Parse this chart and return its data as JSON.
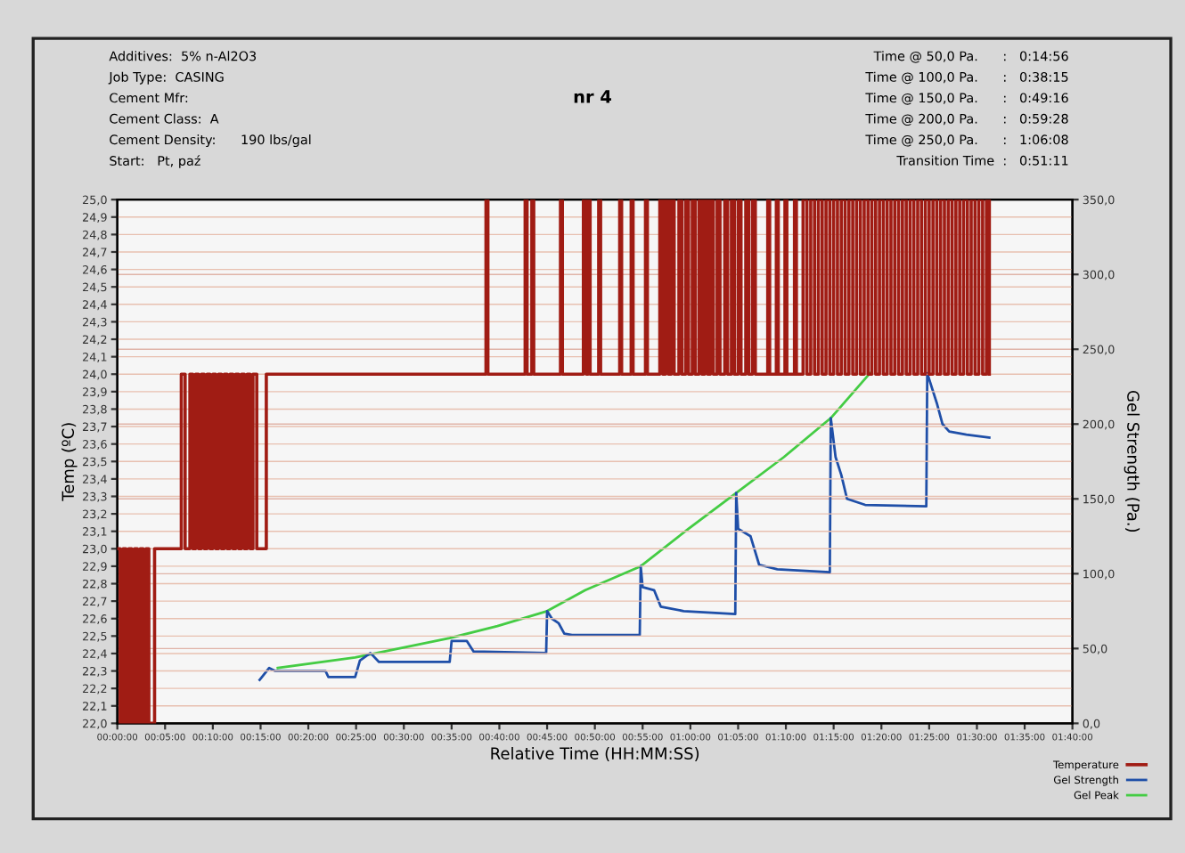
{
  "chart_data": {
    "type": "line",
    "title": "nr 4",
    "annotations": [
      "Additives:  5% n-Al2O3",
      "Job Type:  CASING",
      "Cement Mfr:",
      "Cement Class:  A",
      "Cement Density:      190 lbs/gal",
      "Start:   Pt, paź",
      "Time @ 50,0 Pa.      :   0:14:56",
      "Time @ 100,0 Pa.      :   0:38:15",
      "Time @ 150,0 Pa.      :   0:49:16",
      "Time @ 200,0 Pa.      :   0:59:28",
      "Time @ 250,0 Pa.      :   1:06:08",
      "Transition Time  :   0:51:11"
    ],
    "xlabel": "Relative Time (HH:MM:SS)",
    "ylabel": "Temp (ºC)",
    "y2label": "Gel Strength (Pa.)",
    "xlim": [
      0,
      100
    ],
    "xticks": [
      {
        "value": 0,
        "label": "00:00:00"
      },
      {
        "value": 5,
        "label": "00:05:00"
      },
      {
        "value": 10,
        "label": "00:10:00"
      },
      {
        "value": 15,
        "label": "00:15:00"
      },
      {
        "value": 20,
        "label": "00:20:00"
      },
      {
        "value": 25,
        "label": "00:25:00"
      },
      {
        "value": 30,
        "label": "00:30:00"
      },
      {
        "value": 35,
        "label": "00:35:00"
      },
      {
        "value": 40,
        "label": "00:40:00"
      },
      {
        "value": 45,
        "label": "00:45:00"
      },
      {
        "value": 50,
        "label": "00:50:00"
      },
      {
        "value": 55,
        "label": "00:55:00"
      },
      {
        "value": 60,
        "label": "01:00:00"
      },
      {
        "value": 65,
        "label": "01:05:00"
      },
      {
        "value": 70,
        "label": "01:10:00"
      },
      {
        "value": 75,
        "label": "01:15:00"
      },
      {
        "value": 80,
        "label": "01:20:00"
      },
      {
        "value": 85,
        "label": "01:25:00"
      },
      {
        "value": 90,
        "label": "01:30:00"
      },
      {
        "value": 95,
        "label": "01:35:00"
      },
      {
        "value": 100,
        "label": "01:40:00"
      }
    ],
    "ylim": [
      22.0,
      25.0
    ],
    "yticks": [
      {
        "value": 22.0,
        "label": "22,0"
      },
      {
        "value": 22.1,
        "label": "22,1"
      },
      {
        "value": 22.2,
        "label": "22,2"
      },
      {
        "value": 22.3,
        "label": "22,3"
      },
      {
        "value": 22.4,
        "label": "22,4"
      },
      {
        "value": 22.5,
        "label": "22,5"
      },
      {
        "value": 22.6,
        "label": "22,6"
      },
      {
        "value": 22.7,
        "label": "22,7"
      },
      {
        "value": 22.8,
        "label": "22,8"
      },
      {
        "value": 22.9,
        "label": "22,9"
      },
      {
        "value": 23.0,
        "label": "23,0"
      },
      {
        "value": 23.1,
        "label": "23,1"
      },
      {
        "value": 23.2,
        "label": "23,2"
      },
      {
        "value": 23.3,
        "label": "23,3"
      },
      {
        "value": 23.4,
        "label": "23,4"
      },
      {
        "value": 23.5,
        "label": "23,5"
      },
      {
        "value": 23.6,
        "label": "23,6"
      },
      {
        "value": 23.7,
        "label": "23,7"
      },
      {
        "value": 23.8,
        "label": "23,8"
      },
      {
        "value": 23.9,
        "label": "23,9"
      },
      {
        "value": 24.0,
        "label": "24,0"
      },
      {
        "value": 24.1,
        "label": "24,1"
      },
      {
        "value": 24.2,
        "label": "24,2"
      },
      {
        "value": 24.3,
        "label": "24,3"
      },
      {
        "value": 24.4,
        "label": "24,4"
      },
      {
        "value": 24.5,
        "label": "24,5"
      },
      {
        "value": 24.6,
        "label": "24,6"
      },
      {
        "value": 24.7,
        "label": "24,7"
      },
      {
        "value": 24.8,
        "label": "24,8"
      },
      {
        "value": 24.9,
        "label": "24,9"
      },
      {
        "value": 25.0,
        "label": "25,0"
      }
    ],
    "y2lim": [
      0,
      350
    ],
    "y2ticks": [
      {
        "value": 0,
        "label": "0,0"
      },
      {
        "value": 50,
        "label": "50,0"
      },
      {
        "value": 100,
        "label": "100,0"
      },
      {
        "value": 150,
        "label": "150,0"
      },
      {
        "value": 200,
        "label": "200,0"
      },
      {
        "value": 250,
        "label": "250,0"
      },
      {
        "value": 300,
        "label": "300,0"
      },
      {
        "value": 350,
        "label": "350,0"
      }
    ],
    "grid": true,
    "legend": "bottom right",
    "marker": "none",
    "line_style": "solid",
    "series": [
      {
        "name": "Gel Peak",
        "axis": "y2",
        "color": "#44cc44",
        "x": [
          16.8,
          24.9,
          34.8,
          39.8,
          45.0,
          49.0,
          54.8,
          59.8,
          64.8,
          69.8,
          74.7,
          78.8
        ],
        "values": [
          37,
          44,
          57,
          65,
          75,
          89,
          105,
          130,
          154,
          178,
          204,
          234
        ]
      },
      {
        "name": "Gel Strength",
        "axis": "y2",
        "color": "#1f4fa8",
        "x": [
          14.9,
          15.9,
          16.5,
          21.8,
          22.1,
          24.9,
          25.4,
          26.5,
          27.4,
          34.8,
          35.0,
          36.6,
          37.3,
          44.9,
          45.0,
          45.5,
          46.2,
          46.8,
          47.6,
          54.7,
          54.8,
          55.0,
          56.2,
          56.9,
          59.3,
          64.7,
          64.8,
          65.0,
          66.3,
          67.2,
          69.1,
          74.6,
          74.7,
          75.2,
          75.8,
          76.4,
          78.3,
          84.7,
          84.8,
          85.8,
          86.4,
          87.1,
          88.9,
          91.3
        ],
        "values": [
          29,
          37,
          35,
          35,
          31,
          31,
          42,
          47,
          41,
          41,
          55,
          55,
          48,
          47,
          75,
          70,
          67,
          60,
          59,
          59,
          105,
          91,
          89,
          78,
          75,
          73,
          154,
          130,
          125,
          106,
          103,
          101,
          204,
          178,
          166,
          150,
          146,
          145,
          234,
          214,
          200,
          195,
          193,
          191
        ]
      },
      {
        "name": "Temperature",
        "type": "step",
        "axis": "y",
        "color": "#a01c14",
        "x": [
          0,
          0.3,
          0.6,
          0.9,
          1.2,
          1.5,
          1.8,
          2.1,
          2.4,
          2.7,
          3.0,
          3.3,
          3.9,
          6.7,
          7.1,
          7.6,
          7.9,
          8.2,
          8.5,
          8.8,
          9.1,
          9.4,
          9.7,
          10.0,
          10.3,
          10.6,
          10.9,
          11.2,
          11.5,
          11.8,
          12.1,
          12.4,
          12.7,
          13.0,
          13.3,
          13.6,
          13.9,
          14.2,
          14.6,
          15.6,
          15.8,
          38.6,
          38.8,
          42.7,
          42.9,
          43.4,
          43.6,
          46.4,
          46.6,
          48.8,
          49.1,
          49.3,
          49.5,
          50.4,
          50.6,
          52.6,
          52.8,
          53.8,
          54.0,
          55.3,
          55.5,
          56.8,
          57.1,
          57.4,
          57.7,
          58.0,
          58.3,
          58.8,
          59.1,
          59.5,
          59.8,
          60.2,
          60.5,
          60.9,
          61.2,
          61.5,
          61.8,
          62.1,
          62.4,
          62.8,
          63.1,
          63.6,
          63.9,
          64.3,
          64.6,
          65.0,
          65.3,
          65.8,
          66.1,
          66.5,
          66.8,
          68.1,
          68.3,
          69.0,
          69.2,
          69.9,
          70.1,
          70.9,
          71.1,
          71.8,
          72.2,
          72.6,
          73.0,
          73.4,
          73.8,
          74.2,
          74.6,
          75.0,
          75.4,
          75.8,
          76.2,
          76.6,
          77.0,
          77.4,
          77.8,
          78.2,
          78.6,
          79.0,
          79.4,
          79.8,
          80.2,
          80.6,
          81.0,
          81.4,
          81.8,
          82.2,
          82.6,
          83.0,
          83.4,
          83.8,
          84.2,
          84.6,
          85.0,
          85.4,
          85.8,
          86.2,
          86.6,
          87.0,
          87.4,
          87.8,
          88.2,
          88.6,
          89.0,
          89.4,
          89.8,
          90.2,
          90.6,
          91.0,
          91.3
        ],
        "values": [
          23,
          22,
          23,
          22,
          23,
          22,
          23,
          22,
          23,
          22,
          23,
          22,
          23,
          24,
          23,
          24,
          23,
          24,
          23,
          24,
          23,
          24,
          23,
          24,
          23,
          24,
          23,
          24,
          23,
          24,
          23,
          24,
          23,
          24,
          23,
          24,
          23,
          24,
          23,
          24,
          24,
          25,
          24,
          25,
          24,
          25,
          24,
          25,
          24,
          25,
          24,
          25,
          24,
          25,
          24,
          25,
          24,
          25,
          24,
          25,
          24,
          25,
          24,
          25,
          24,
          25,
          24,
          25,
          24,
          25,
          24,
          25,
          24,
          25,
          24,
          25,
          24,
          25,
          24,
          25,
          24,
          25,
          24,
          25,
          24,
          25,
          24,
          25,
          24,
          25,
          24,
          25,
          24,
          25,
          24,
          25,
          24,
          25,
          24,
          25,
          24,
          25,
          24,
          25,
          24,
          25,
          24,
          25,
          24,
          25,
          24,
          25,
          24,
          25,
          24,
          25,
          24,
          25,
          24,
          25,
          24,
          25,
          24,
          25,
          24,
          25,
          24,
          25,
          24,
          25,
          24,
          25,
          24,
          25,
          24,
          25,
          24,
          25,
          24,
          25,
          24,
          25,
          24,
          25,
          24,
          25,
          24,
          25,
          24
        ]
      }
    ]
  }
}
